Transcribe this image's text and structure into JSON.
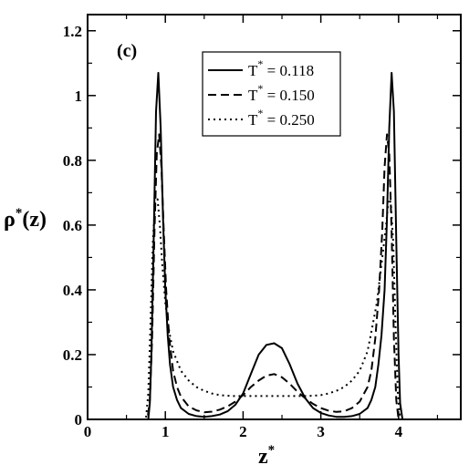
{
  "chart_data": {
    "type": "line",
    "panel_label": "(c)",
    "xlabel": {
      "base": "z",
      "sup": "*"
    },
    "ylabel": {
      "base": "ρ",
      "sup": "*",
      "rest": "(z)"
    },
    "xlim": [
      0,
      4.8
    ],
    "ylim": [
      0,
      1.25
    ],
    "x_ticks": [
      "0",
      "1",
      "2",
      "3",
      "4"
    ],
    "y_ticks": [
      "0",
      "0.2",
      "0.4",
      "0.6",
      "0.8",
      "1",
      "1.2"
    ],
    "x_tick_values": [
      0,
      1,
      2,
      3,
      4
    ],
    "y_tick_values": [
      0,
      0.2,
      0.4,
      0.6,
      0.8,
      1.0,
      1.2
    ],
    "grid": false,
    "legend_position": "top-right",
    "series": [
      {
        "name": {
          "pre": "T",
          "sup": "*",
          "post": " = 0.118"
        },
        "style": "solid",
        "x": [
          0.0,
          0.78,
          0.8,
          0.82,
          0.85,
          0.88,
          0.91,
          0.94,
          0.97,
          1.0,
          1.03,
          1.06,
          1.1,
          1.15,
          1.2,
          1.3,
          1.4,
          1.5,
          1.6,
          1.7,
          1.8,
          1.9,
          2.0,
          2.1,
          2.2,
          2.3,
          2.4,
          2.5,
          2.6,
          2.7,
          2.8,
          2.9,
          3.0,
          3.1,
          3.2,
          3.3,
          3.4,
          3.5,
          3.6,
          3.65,
          3.7,
          3.74,
          3.78,
          3.82,
          3.85,
          3.88,
          3.91,
          3.94,
          3.97,
          4.0,
          4.02,
          4.05,
          4.8
        ],
        "y": [
          0.0,
          0.0,
          0.05,
          0.2,
          0.55,
          0.95,
          1.07,
          0.9,
          0.62,
          0.4,
          0.26,
          0.17,
          0.1,
          0.06,
          0.035,
          0.017,
          0.01,
          0.008,
          0.01,
          0.015,
          0.025,
          0.045,
          0.08,
          0.14,
          0.2,
          0.23,
          0.235,
          0.22,
          0.17,
          0.11,
          0.065,
          0.035,
          0.02,
          0.012,
          0.008,
          0.008,
          0.01,
          0.017,
          0.035,
          0.06,
          0.1,
          0.17,
          0.26,
          0.4,
          0.62,
          0.9,
          1.07,
          0.95,
          0.55,
          0.2,
          0.05,
          0.0,
          0.0
        ]
      },
      {
        "name": {
          "pre": "T",
          "sup": "*",
          "post": " = 0.150"
        },
        "style": "dashed",
        "x": [
          0.0,
          0.77,
          0.8,
          0.83,
          0.86,
          0.89,
          0.92,
          0.95,
          0.98,
          1.01,
          1.05,
          1.1,
          1.15,
          1.2,
          1.3,
          1.4,
          1.5,
          1.6,
          1.7,
          1.8,
          1.9,
          2.0,
          2.1,
          2.2,
          2.3,
          2.4,
          2.5,
          2.6,
          2.7,
          2.8,
          2.9,
          3.0,
          3.1,
          3.2,
          3.3,
          3.4,
          3.5,
          3.6,
          3.65,
          3.7,
          3.75,
          3.79,
          3.82,
          3.85,
          3.88,
          3.91,
          3.94,
          3.97,
          4.0,
          4.03,
          4.8
        ],
        "y": [
          0.0,
          0.0,
          0.06,
          0.25,
          0.58,
          0.82,
          0.88,
          0.78,
          0.58,
          0.4,
          0.25,
          0.15,
          0.1,
          0.07,
          0.04,
          0.028,
          0.022,
          0.024,
          0.03,
          0.04,
          0.055,
          0.075,
          0.1,
          0.12,
          0.135,
          0.14,
          0.13,
          0.11,
          0.085,
          0.065,
          0.048,
          0.035,
          0.027,
          0.023,
          0.025,
          0.035,
          0.055,
          0.1,
          0.15,
          0.25,
          0.4,
          0.58,
          0.78,
          0.88,
          0.82,
          0.58,
          0.25,
          0.06,
          0.0,
          0.0,
          0.0
        ]
      },
      {
        "name": {
          "pre": "T",
          "sup": "*",
          "post": " = 0.250"
        },
        "style": "dotted",
        "x": [
          0.0,
          0.75,
          0.78,
          0.81,
          0.84,
          0.87,
          0.9,
          0.93,
          0.96,
          1.0,
          1.05,
          1.1,
          1.2,
          1.3,
          1.4,
          1.5,
          1.6,
          1.7,
          1.8,
          1.9,
          2.0,
          2.2,
          2.4,
          2.6,
          2.8,
          2.9,
          3.0,
          3.1,
          3.2,
          3.3,
          3.4,
          3.5,
          3.6,
          3.65,
          3.72,
          3.78,
          3.84,
          3.87,
          3.9,
          3.93,
          3.96,
          3.99,
          4.02,
          4.05,
          4.8
        ],
        "y": [
          0.0,
          0.0,
          0.08,
          0.3,
          0.55,
          0.67,
          0.68,
          0.6,
          0.48,
          0.36,
          0.27,
          0.21,
          0.15,
          0.12,
          0.1,
          0.088,
          0.08,
          0.075,
          0.073,
          0.072,
          0.072,
          0.072,
          0.072,
          0.072,
          0.072,
          0.073,
          0.075,
          0.08,
          0.088,
          0.1,
          0.12,
          0.15,
          0.21,
          0.27,
          0.36,
          0.48,
          0.6,
          0.68,
          0.67,
          0.55,
          0.3,
          0.08,
          0.0,
          0.0,
          0.0
        ]
      }
    ]
  }
}
